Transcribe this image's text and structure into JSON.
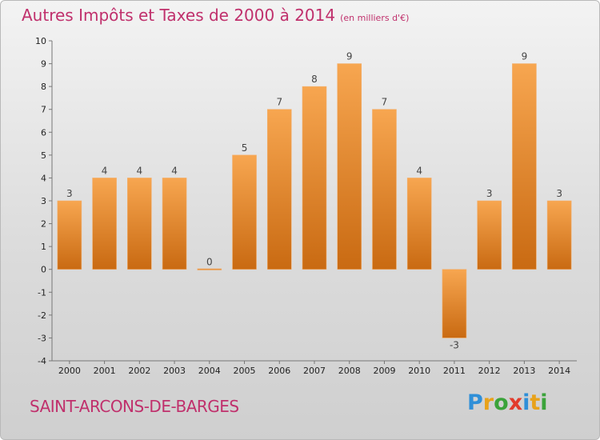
{
  "header": {
    "title": "Autres Impôts et Taxes de 2000 à 2014",
    "unit": "(en milliers d'€)"
  },
  "footer": {
    "commune": "SAINT-ARCONS-DE-BARGES",
    "logo_letters": [
      "P",
      "r",
      "o",
      "x",
      "i",
      "t",
      "i"
    ],
    "logo_colors": [
      "#2f8fd8",
      "#e8a21a",
      "#3aa33a",
      "#e23c2c",
      "#2f8fd8",
      "#e8a21a",
      "#3aa33a"
    ]
  },
  "colors": {
    "title": "#c0306c",
    "bar_light": "#f7a650",
    "bar_dark": "#c96a12"
  },
  "chart_data": {
    "type": "bar",
    "title": "Autres Impôts et Taxes de 2000 à 2014",
    "categories": [
      "2000",
      "2001",
      "2002",
      "2003",
      "2004",
      "2005",
      "2006",
      "2007",
      "2008",
      "2009",
      "2010",
      "2011",
      "2012",
      "2013",
      "2014"
    ],
    "values": [
      3,
      4,
      4,
      4,
      0,
      5,
      7,
      8,
      9,
      7,
      4,
      -3,
      3,
      9,
      3
    ],
    "ylim": [
      -4,
      10
    ],
    "yticks": [
      -4,
      -3,
      -2,
      -1,
      0,
      1,
      2,
      3,
      4,
      5,
      6,
      7,
      8,
      9,
      10
    ],
    "grid": false,
    "xlabel": "",
    "ylabel": ""
  }
}
